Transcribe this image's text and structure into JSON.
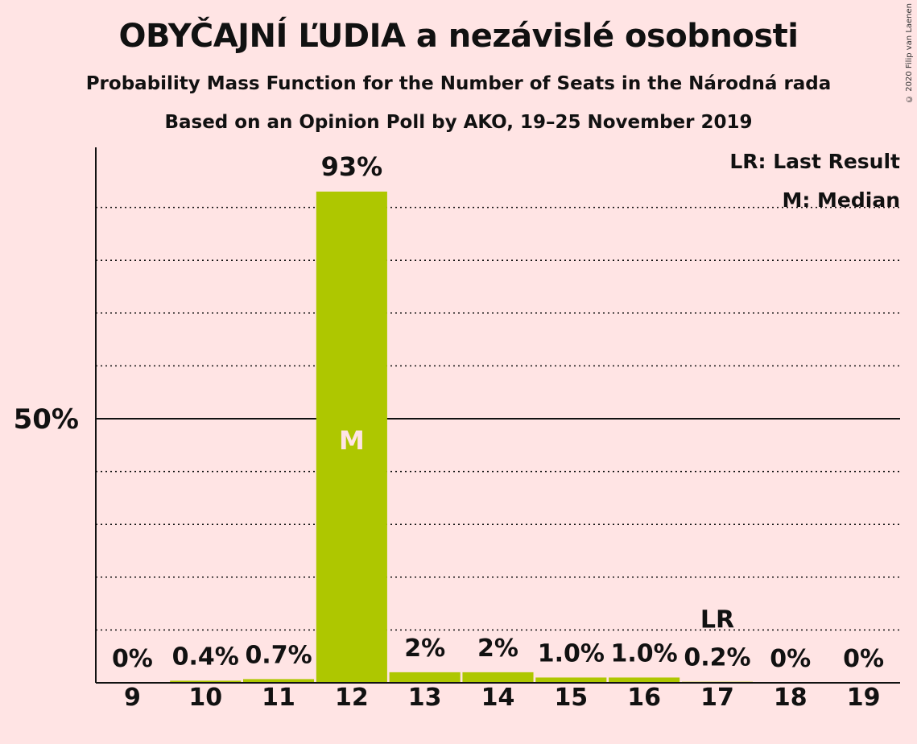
{
  "header": {
    "title": "OBYČAJNÍ ĽUDIA a nezávislé osobnosti",
    "subtitle": "Probability Mass Function for the Number of Seats in the Národná rada",
    "subtitle2": "Based on an Opinion Poll by AKO, 19–25 November 2019",
    "copyright": "© 2020 Filip van Laenen"
  },
  "legend": {
    "last_result": "LR: Last Result",
    "median": "M: Median"
  },
  "colors": {
    "background": "#ffe4e4",
    "bar": "#aec700",
    "axis": "#111111",
    "median_label": "#ffe4e4"
  },
  "chart_data": {
    "type": "bar",
    "categories": [
      "9",
      "10",
      "11",
      "12",
      "13",
      "14",
      "15",
      "16",
      "17",
      "18",
      "19"
    ],
    "values": [
      0,
      0.4,
      0.7,
      93,
      2,
      2,
      1.0,
      1.0,
      0.2,
      0,
      0
    ],
    "data_labels": [
      "0%",
      "0.4%",
      "0.7%",
      "93%",
      "2%",
      "2%",
      "1.0%",
      "1.0%",
      "0.2%",
      "0%",
      "0%"
    ],
    "ylim": [
      0,
      100
    ],
    "y_tick_label": "50%",
    "y_tick_value": 50,
    "gridlines": [
      10,
      20,
      30,
      40,
      60,
      70,
      80,
      90
    ],
    "median_category": "12",
    "median_marker": "M",
    "last_result_category": "17",
    "last_result_marker": "LR",
    "legend_position": "top-right"
  }
}
